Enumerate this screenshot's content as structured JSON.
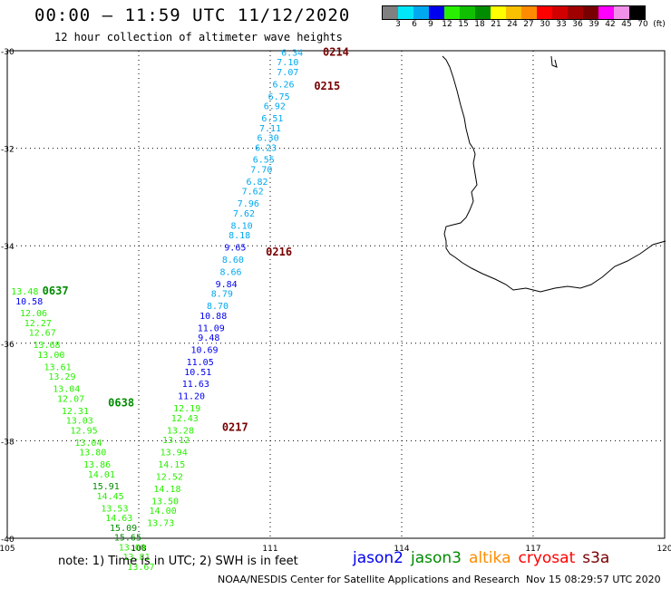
{
  "header": {
    "title": "00:00 – 11:59 UTC 11/12/2020",
    "subtitle": "12 hour collection of altimeter wave heights"
  },
  "legend": {
    "colors": [
      "#808080",
      "#00e8f8",
      "#00a8f0",
      "#0000f0",
      "#28f000",
      "#10c000",
      "#008c00",
      "#ffff00",
      "#f8c000",
      "#ff8c00",
      "#ff0000",
      "#d00000",
      "#a00000",
      "#780000",
      "#ff00ff",
      "#f090e8",
      "#000000"
    ],
    "labels": [
      "3",
      "6",
      "9",
      "12",
      "15",
      "18",
      "21",
      "24",
      "27",
      "30",
      "33",
      "36",
      "39",
      "42",
      "45",
      "70",
      "(ft)"
    ]
  },
  "note": "note:  1) Time is in UTC;  2) SWH is in feet",
  "satellites": [
    {
      "name": "jason2",
      "color": "#0000f0"
    },
    {
      "name": "jason3",
      "color": "#008c00"
    },
    {
      "name": "altika",
      "color": "#ff8c00"
    },
    {
      "name": "cryosat",
      "color": "#ff0000"
    },
    {
      "name": "s3a",
      "color": "#780000"
    }
  ],
  "footer": {
    "left": "NOAA/NESDIS Center for Satellite Applications and Research",
    "right": "Nov 15 08:29:57 UTC 2020"
  },
  "axes": {
    "lat_ticks": [
      "-30",
      "-32",
      "-34",
      "-36",
      "-38",
      "-40"
    ],
    "lon_ticks": [
      "105",
      "108",
      "111",
      "114",
      "117",
      "120"
    ]
  },
  "tracks": [
    {
      "times": [
        {
          "label": "0214",
          "lon": 112.2,
          "lat": -30.1
        },
        {
          "label": "0215",
          "lon": 112.0,
          "lat": -30.8
        },
        {
          "label": "0216",
          "lon": 110.9,
          "lat": -34.2
        },
        {
          "label": "0217",
          "lon": 109.9,
          "lat": -37.8
        }
      ],
      "points": [
        {
          "v": "6.34",
          "lon": 111.5,
          "lat": -30.1,
          "c": "#00a8f0"
        },
        {
          "v": "7.10",
          "lon": 111.4,
          "lat": -30.3,
          "c": "#00a8f0"
        },
        {
          "v": "7.07",
          "lon": 111.4,
          "lat": -30.5,
          "c": "#00a8f0"
        },
        {
          "v": "6.26",
          "lon": 111.3,
          "lat": -30.75,
          "c": "#00a8f0"
        },
        {
          "v": "6.75",
          "lon": 111.2,
          "lat": -31.0,
          "c": "#00a8f0"
        },
        {
          "v": "6.92",
          "lon": 111.1,
          "lat": -31.2,
          "c": "#00a8f0"
        },
        {
          "v": "6.51",
          "lon": 111.05,
          "lat": -31.45,
          "c": "#00a8f0"
        },
        {
          "v": "7.11",
          "lon": 111.0,
          "lat": -31.65,
          "c": "#00a8f0"
        },
        {
          "v": "6.30",
          "lon": 110.95,
          "lat": -31.85,
          "c": "#00a8f0"
        },
        {
          "v": "6.23",
          "lon": 110.9,
          "lat": -32.05,
          "c": "#00a8f0"
        },
        {
          "v": "6.55",
          "lon": 110.85,
          "lat": -32.3,
          "c": "#00a8f0"
        },
        {
          "v": "7.70",
          "lon": 110.8,
          "lat": -32.5,
          "c": "#00a8f0"
        },
        {
          "v": "6.82",
          "lon": 110.7,
          "lat": -32.75,
          "c": "#00a8f0"
        },
        {
          "v": "7.62",
          "lon": 110.6,
          "lat": -32.95,
          "c": "#00a8f0"
        },
        {
          "v": "7.96",
          "lon": 110.5,
          "lat": -33.2,
          "c": "#00a8f0"
        },
        {
          "v": "7.62",
          "lon": 110.4,
          "lat": -33.4,
          "c": "#00a8f0"
        },
        {
          "v": "8.10",
          "lon": 110.35,
          "lat": -33.65,
          "c": "#00a8f0"
        },
        {
          "v": "8.18",
          "lon": 110.3,
          "lat": -33.85,
          "c": "#00a8f0"
        },
        {
          "v": "9.65",
          "lon": 110.2,
          "lat": -34.1,
          "c": "#0000f0"
        },
        {
          "v": "8.60",
          "lon": 110.15,
          "lat": -34.35,
          "c": "#00a8f0"
        },
        {
          "v": "8.66",
          "lon": 110.1,
          "lat": -34.6,
          "c": "#00a8f0"
        },
        {
          "v": "9.84",
          "lon": 110.0,
          "lat": -34.85,
          "c": "#0000f0"
        },
        {
          "v": "8.79",
          "lon": 109.9,
          "lat": -35.05,
          "c": "#00a8f0"
        },
        {
          "v": "8.70",
          "lon": 109.8,
          "lat": -35.3,
          "c": "#00a8f0"
        },
        {
          "v": "10.88",
          "lon": 109.7,
          "lat": -35.5,
          "c": "#0000f0"
        },
        {
          "v": "11.09",
          "lon": 109.65,
          "lat": -35.75,
          "c": "#0000f0"
        },
        {
          "v": "9.48",
          "lon": 109.6,
          "lat": -35.95,
          "c": "#0000f0"
        },
        {
          "v": "10.69",
          "lon": 109.5,
          "lat": -36.2,
          "c": "#0000f0"
        },
        {
          "v": "11.05",
          "lon": 109.4,
          "lat": -36.45,
          "c": "#0000f0"
        },
        {
          "v": "10.51",
          "lon": 109.35,
          "lat": -36.65,
          "c": "#0000f0"
        },
        {
          "v": "11.63",
          "lon": 109.3,
          "lat": -36.9,
          "c": "#0000f0"
        },
        {
          "v": "11.20",
          "lon": 109.2,
          "lat": -37.15,
          "c": "#0000f0"
        },
        {
          "v": "12.19",
          "lon": 109.1,
          "lat": -37.4,
          "c": "#28f000"
        },
        {
          "v": "12.43",
          "lon": 109.05,
          "lat": -37.6,
          "c": "#28f000"
        },
        {
          "v": "13.28",
          "lon": 108.95,
          "lat": -37.85,
          "c": "#28f000"
        },
        {
          "v": "13.12",
          "lon": 108.85,
          "lat": -38.05,
          "c": "#28f000"
        },
        {
          "v": "13.94",
          "lon": 108.8,
          "lat": -38.3,
          "c": "#28f000"
        },
        {
          "v": "14.15",
          "lon": 108.75,
          "lat": -38.55,
          "c": "#28f000"
        },
        {
          "v": "12.52",
          "lon": 108.7,
          "lat": -38.8,
          "c": "#28f000"
        },
        {
          "v": "14.18",
          "lon": 108.65,
          "lat": -39.05,
          "c": "#28f000"
        },
        {
          "v": "13.50",
          "lon": 108.6,
          "lat": -39.3,
          "c": "#28f000"
        },
        {
          "v": "14.00",
          "lon": 108.55,
          "lat": -39.5,
          "c": "#28f000"
        },
        {
          "v": "13.73",
          "lon": 108.5,
          "lat": -39.75,
          "c": "#28f000"
        }
      ]
    },
    {
      "times": [
        {
          "label": "0637",
          "lon": 105.8,
          "lat": -35.0
        },
        {
          "label": "0638",
          "lon": 107.3,
          "lat": -37.3
        }
      ],
      "points": [
        {
          "v": "13.48",
          "lon": 105.4,
          "lat": -35.0,
          "c": "#28f000"
        },
        {
          "v": "10.58",
          "lon": 105.5,
          "lat": -35.2,
          "c": "#0000f0"
        },
        {
          "v": "12.06",
          "lon": 105.6,
          "lat": -35.45,
          "c": "#28f000"
        },
        {
          "v": "12.27",
          "lon": 105.7,
          "lat": -35.65,
          "c": "#28f000"
        },
        {
          "v": "12.67",
          "lon": 105.8,
          "lat": -35.85,
          "c": "#28f000"
        },
        {
          "v": "13.68",
          "lon": 105.9,
          "lat": -36.1,
          "c": "#28f000"
        },
        {
          "v": "13.00",
          "lon": 106.0,
          "lat": -36.3,
          "c": "#28f000"
        },
        {
          "v": "13.61",
          "lon": 106.15,
          "lat": -36.55,
          "c": "#28f000"
        },
        {
          "v": "13.29",
          "lon": 106.25,
          "lat": -36.75,
          "c": "#28f000"
        },
        {
          "v": "13.04",
          "lon": 106.35,
          "lat": -37.0,
          "c": "#28f000"
        },
        {
          "v": "12.07",
          "lon": 106.45,
          "lat": -37.2,
          "c": "#28f000"
        },
        {
          "v": "12.31",
          "lon": 106.55,
          "lat": -37.45,
          "c": "#28f000"
        },
        {
          "v": "13.03",
          "lon": 106.65,
          "lat": -37.65,
          "c": "#28f000"
        },
        {
          "v": "12.95",
          "lon": 106.75,
          "lat": -37.85,
          "c": "#28f000"
        },
        {
          "v": "13.04",
          "lon": 106.85,
          "lat": -38.1,
          "c": "#28f000"
        },
        {
          "v": "13.80",
          "lon": 106.95,
          "lat": -38.3,
          "c": "#28f000"
        },
        {
          "v": "13.86",
          "lon": 107.05,
          "lat": -38.55,
          "c": "#28f000"
        },
        {
          "v": "14.01",
          "lon": 107.15,
          "lat": -38.75,
          "c": "#28f000"
        },
        {
          "v": "15.91",
          "lon": 107.25,
          "lat": -39.0,
          "c": "#008c00"
        },
        {
          "v": "14.45",
          "lon": 107.35,
          "lat": -39.2,
          "c": "#28f000"
        },
        {
          "v": "13.53",
          "lon": 107.45,
          "lat": -39.45,
          "c": "#28f000"
        },
        {
          "v": "14.63",
          "lon": 107.55,
          "lat": -39.65,
          "c": "#28f000"
        },
        {
          "v": "15.09",
          "lon": 107.65,
          "lat": -39.85,
          "c": "#008c00"
        },
        {
          "v": "15.65",
          "lon": 107.75,
          "lat": -40.05,
          "c": "#008c00"
        },
        {
          "v": "13.00",
          "lon": 107.85,
          "lat": -40.25,
          "c": "#28f000"
        },
        {
          "v": "13.81",
          "lon": 107.95,
          "lat": -40.45,
          "c": "#28f000"
        },
        {
          "v": "13.67",
          "lon": 108.05,
          "lat": -40.65,
          "c": "#28f000"
        }
      ]
    }
  ]
}
